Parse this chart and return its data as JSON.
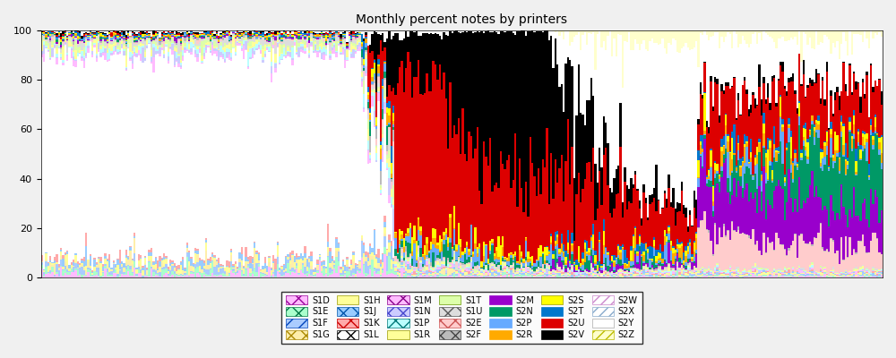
{
  "title": "Monthly percent notes by printers",
  "n_bars": 400,
  "ylim": [
    0,
    100
  ],
  "series": [
    {
      "name": "S1D",
      "facecolor": "#ffbbff",
      "edgecolor": "#990099",
      "hatch": "xx"
    },
    {
      "name": "S1E",
      "facecolor": "#aaffcc",
      "edgecolor": "#007744",
      "hatch": "xx"
    },
    {
      "name": "S1F",
      "facecolor": "#aaccff",
      "edgecolor": "#0044bb",
      "hatch": "//"
    },
    {
      "name": "S1G",
      "facecolor": "#ffeeaa",
      "edgecolor": "#aa8800",
      "hatch": "xx"
    },
    {
      "name": "S1H",
      "facecolor": "#ffff99",
      "edgecolor": "#999900",
      "hatch": ""
    },
    {
      "name": "S1J",
      "facecolor": "#99ccff",
      "edgecolor": "#0055aa",
      "hatch": "xx"
    },
    {
      "name": "S1K",
      "facecolor": "#ffaaaa",
      "edgecolor": "#cc0000",
      "hatch": "xx"
    },
    {
      "name": "S1L",
      "facecolor": "#ffffff",
      "edgecolor": "#000000",
      "hatch": "xx"
    },
    {
      "name": "S1M",
      "facecolor": "#ffbbff",
      "edgecolor": "#880088",
      "hatch": "xx"
    },
    {
      "name": "S1N",
      "facecolor": "#ccccff",
      "edgecolor": "#4444cc",
      "hatch": "xx"
    },
    {
      "name": "S1P",
      "facecolor": "#bbffff",
      "edgecolor": "#007777",
      "hatch": "xx"
    },
    {
      "name": "S1R",
      "facecolor": "#ffff99",
      "edgecolor": "#999900",
      "hatch": ""
    },
    {
      "name": "S1T",
      "facecolor": "#ddffaa",
      "edgecolor": "#669900",
      "hatch": ""
    },
    {
      "name": "S1U",
      "facecolor": "#dddddd",
      "edgecolor": "#555555",
      "hatch": "xx"
    },
    {
      "name": "S2E",
      "facecolor": "#ffcccc",
      "edgecolor": "#cc5555",
      "hatch": "xx"
    },
    {
      "name": "S2F",
      "facecolor": "#bbbbbb",
      "edgecolor": "#444444",
      "hatch": "xx"
    },
    {
      "name": "S2M",
      "facecolor": "#9900cc",
      "edgecolor": "#9900cc",
      "hatch": ""
    },
    {
      "name": "S2N",
      "facecolor": "#009966",
      "edgecolor": "#009966",
      "hatch": ""
    },
    {
      "name": "S2P",
      "facecolor": "#66aaff",
      "edgecolor": "#66aaff",
      "hatch": ""
    },
    {
      "name": "S2R",
      "facecolor": "#ffaa00",
      "edgecolor": "#ffaa00",
      "hatch": ""
    },
    {
      "name": "S2S",
      "facecolor": "#ffff00",
      "edgecolor": "#999900",
      "hatch": ""
    },
    {
      "name": "S2T",
      "facecolor": "#0077cc",
      "edgecolor": "#0077cc",
      "hatch": ""
    },
    {
      "name": "S2U",
      "facecolor": "#dd0000",
      "edgecolor": "#dd0000",
      "hatch": ""
    },
    {
      "name": "S2V",
      "facecolor": "#000000",
      "edgecolor": "#000000",
      "hatch": ""
    },
    {
      "name": "S2W",
      "facecolor": "#ffffff",
      "edgecolor": "#cc88cc",
      "hatch": "///"
    },
    {
      "name": "S2X",
      "facecolor": "#ffffff",
      "edgecolor": "#88aacc",
      "hatch": "///"
    },
    {
      "name": "S2Y",
      "facecolor": "#ffffff",
      "edgecolor": "#aaaaaa",
      "hatch": ""
    },
    {
      "name": "S2Z",
      "facecolor": "#ffffcc",
      "edgecolor": "#bbbb00",
      "hatch": "///"
    }
  ],
  "background_color": "#f0f0f0",
  "title_fontsize": 10,
  "tick_fontsize": 8,
  "legend_fontsize": 7
}
